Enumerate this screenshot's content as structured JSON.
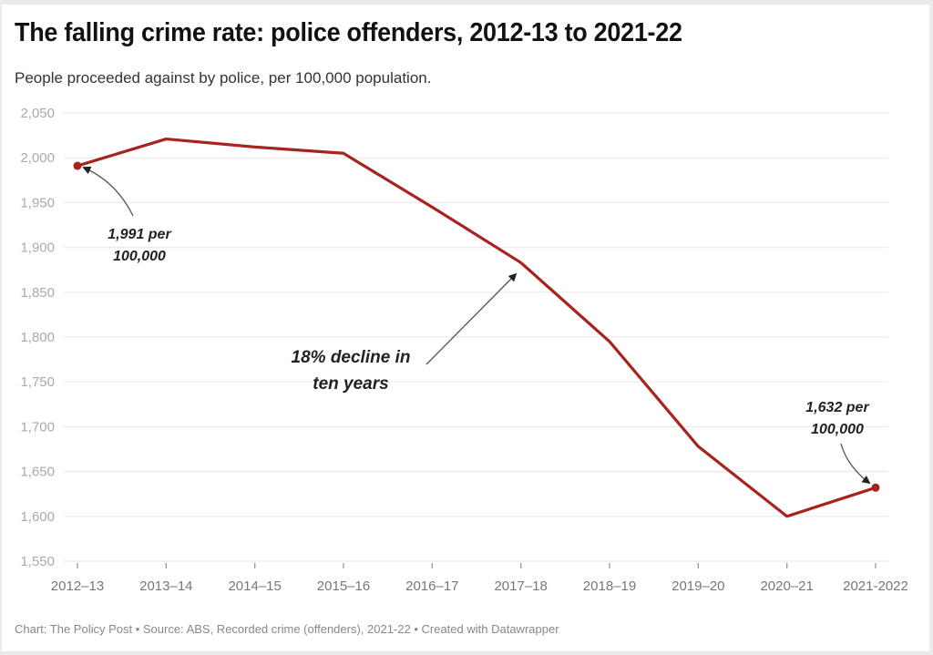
{
  "header": {
    "title": "The falling crime rate: police offenders, 2012-13 to 2021-22",
    "subtitle": "People proceeded against by police, per 100,000 population."
  },
  "footer": {
    "text": "Chart: The Policy Post • Source: ABS, Recorded crime (offenders), 2021-22 • Created with Datawrapper"
  },
  "colors": {
    "line": "#a8231e",
    "grid": "#ebebeb",
    "annotation": "#222222"
  },
  "chart_data": {
    "type": "line",
    "title": "The falling crime rate: police offenders, 2012-13 to 2021-22",
    "subtitle": "People proceeded against by police, per 100,000 population.",
    "xlabel": "",
    "ylabel": "",
    "categories": [
      "2012–13",
      "2013–14",
      "2014–15",
      "2015–16",
      "2016–17",
      "2017–18",
      "2018–19",
      "2019–20",
      "2020–21",
      "2021-2022"
    ],
    "series": [
      {
        "name": "Offenders per 100,000",
        "values": [
          1991,
          2021,
          2012,
          2005,
          1945,
          1883,
          1795,
          1678,
          1600,
          1632
        ]
      }
    ],
    "ylim": [
      1550,
      2050
    ],
    "yticks": [
      1550,
      1600,
      1650,
      1700,
      1750,
      1800,
      1850,
      1900,
      1950,
      2000,
      2050
    ],
    "ytick_labels": [
      "1,550",
      "1,600",
      "1,650",
      "1,700",
      "1,750",
      "1,800",
      "1,850",
      "1,900",
      "1,950",
      "2,000",
      "2,050"
    ],
    "grid": true,
    "legend": "none",
    "annotations": [
      {
        "lines": [
          "1,991 per",
          "100,000"
        ],
        "target_index": 0
      },
      {
        "lines": [
          "18% decline in",
          "ten years"
        ],
        "target_index": 5
      },
      {
        "lines": [
          "1,632 per",
          "100,000"
        ],
        "target_index": 9
      }
    ],
    "highlight_points": [
      0,
      9
    ]
  }
}
